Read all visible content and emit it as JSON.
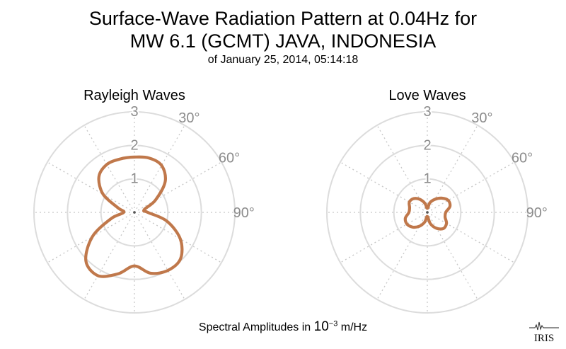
{
  "title_line1": "Surface-Wave Radiation Pattern at 0.04Hz for",
  "title_line2": "MW 6.1 (GCMT) JAVA, INDONESIA",
  "subtitle": "of January 25, 2014, 05:14:18",
  "footer": {
    "prefix": "Spectral Amplitudes in ",
    "base": "10",
    "exponent": "−3",
    "unit": " m/Hz"
  },
  "logo_text": "IRIS",
  "colors": {
    "curve": "#C0784B",
    "grid_ring": "#dcdcdc",
    "grid_spoke": "#c8c8c8",
    "label": "#8c8c8c"
  },
  "chart_data": [
    {
      "type": "polar",
      "title": "Rayleigh Waves",
      "rlim": [
        0,
        3
      ],
      "radial_ticks": [
        "1",
        "2",
        "3"
      ],
      "angle_tick_labels": [
        "30°",
        "60°",
        "90°"
      ],
      "spoke_step_deg": 30,
      "angle_convention": "degrees clockwise from north",
      "series": [
        {
          "theta": [
            0,
            15,
            30,
            45,
            60,
            75,
            90,
            105,
            120,
            135,
            150,
            165,
            180,
            195,
            210,
            225,
            240,
            255,
            270,
            285,
            300,
            315,
            330,
            345
          ],
          "r": [
            1.65,
            1.68,
            1.62,
            1.3,
            0.72,
            0.3,
            0.4,
            1.0,
            1.58,
            1.95,
            2.0,
            1.88,
            1.6,
            1.9,
            2.18,
            2.05,
            1.45,
            0.72,
            0.32,
            0.5,
            1.08,
            1.5,
            1.65,
            1.65
          ]
        }
      ]
    },
    {
      "type": "polar",
      "title": "Love Waves",
      "rlim": [
        0,
        3
      ],
      "radial_ticks": [
        "1",
        "2",
        "3"
      ],
      "angle_tick_labels": [
        "30°",
        "60°",
        "90°"
      ],
      "spoke_step_deg": 30,
      "angle_convention": "degrees clockwise from north",
      "series": [
        {
          "theta": [
            0,
            15,
            30,
            45,
            60,
            75,
            90,
            105,
            120,
            135,
            150,
            165,
            180,
            195,
            210,
            225,
            240,
            255,
            270,
            285,
            300,
            315,
            330,
            345
          ],
          "r": [
            0.12,
            0.3,
            0.45,
            0.6,
            0.72,
            0.7,
            0.55,
            0.55,
            0.66,
            0.68,
            0.55,
            0.35,
            0.12,
            0.3,
            0.48,
            0.62,
            0.7,
            0.68,
            0.55,
            0.55,
            0.62,
            0.58,
            0.45,
            0.28
          ]
        }
      ]
    }
  ]
}
